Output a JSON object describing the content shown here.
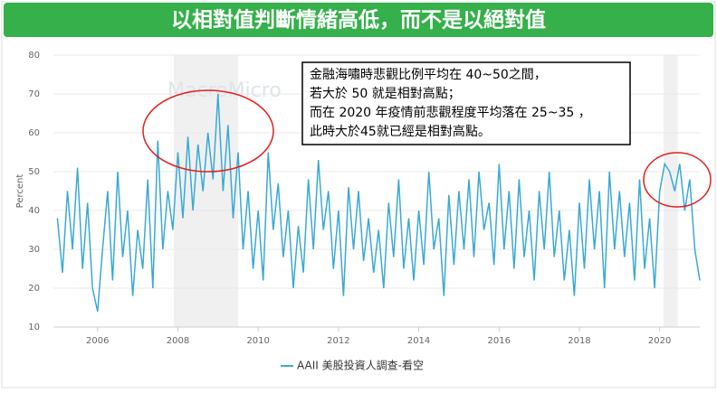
{
  "chart_data": {
    "type": "line",
    "title": "以相對值判斷情緒高低，而不是以絕對值",
    "watermark": "MacroMicro",
    "y_label": "Percent",
    "annotation": [
      "金融海嘯時悲觀比例平均在 40~50之間，",
      "若大於 50 就是相對高點；",
      "而在 2020 年疫情前悲觀程度平均落在 25~35 ，",
      "此時大於45就已經是相對高點。"
    ],
    "xlim": [
      2004.9,
      2021.0
    ],
    "xticks": [
      2006,
      2008,
      2010,
      2012,
      2014,
      2016,
      2018,
      2020
    ],
    "ylim": [
      10,
      80
    ],
    "yticks": [
      10,
      20,
      30,
      40,
      50,
      60,
      70,
      80
    ],
    "grid": true,
    "shaded": [
      [
        2007.9,
        2009.5
      ],
      [
        2020.1,
        2020.45
      ]
    ],
    "x": [
      2005,
      2005.125,
      2005.25,
      2005.375,
      2005.5,
      2005.625,
      2005.75,
      2005.875,
      2006,
      2006.125,
      2006.25,
      2006.375,
      2006.5,
      2006.625,
      2006.75,
      2006.875,
      2007,
      2007.125,
      2007.25,
      2007.375,
      2007.5,
      2007.625,
      2007.75,
      2007.875,
      2008,
      2008.125,
      2008.25,
      2008.375,
      2008.5,
      2008.625,
      2008.75,
      2008.875,
      2009,
      2009.125,
      2009.25,
      2009.375,
      2009.5,
      2009.625,
      2009.75,
      2009.875,
      2010,
      2010.125,
      2010.25,
      2010.375,
      2010.5,
      2010.625,
      2010.75,
      2010.875,
      2011,
      2011.125,
      2011.25,
      2011.375,
      2011.5,
      2011.625,
      2011.75,
      2011.875,
      2012,
      2012.125,
      2012.25,
      2012.375,
      2012.5,
      2012.625,
      2012.75,
      2012.875,
      2013,
      2013.125,
      2013.25,
      2013.375,
      2013.5,
      2013.625,
      2013.75,
      2013.875,
      2014,
      2014.125,
      2014.25,
      2014.375,
      2014.5,
      2014.625,
      2014.75,
      2014.875,
      2015,
      2015.125,
      2015.25,
      2015.375,
      2015.5,
      2015.625,
      2015.75,
      2015.875,
      2016,
      2016.125,
      2016.25,
      2016.375,
      2016.5,
      2016.625,
      2016.75,
      2016.875,
      2017,
      2017.125,
      2017.25,
      2017.375,
      2017.5,
      2017.625,
      2017.75,
      2017.875,
      2018,
      2018.125,
      2018.25,
      2018.375,
      2018.5,
      2018.625,
      2018.75,
      2018.875,
      2019,
      2019.125,
      2019.25,
      2019.375,
      2019.5,
      2019.625,
      2019.75,
      2019.875,
      2020,
      2020.125,
      2020.25,
      2020.375,
      2020.5,
      2020.625,
      2020.75,
      2020.875,
      2021
    ],
    "series": [
      {
        "name": "AAII 美股投資人調查-看空",
        "color": "#3aa9d6",
        "values": [
          38,
          24,
          45,
          30,
          51,
          25,
          42,
          20,
          14,
          30,
          45,
          22,
          50,
          28,
          40,
          18,
          35,
          25,
          48,
          20,
          58,
          30,
          45,
          35,
          55,
          38,
          59,
          40,
          57,
          45,
          60,
          48,
          70,
          45,
          62,
          38,
          55,
          30,
          45,
          25,
          40,
          22,
          55,
          35,
          47,
          28,
          40,
          20,
          36,
          24,
          48,
          30,
          53,
          35,
          45,
          25,
          40,
          18,
          46,
          30,
          45,
          27,
          38,
          24,
          35,
          20,
          42,
          28,
          48,
          25,
          38,
          22,
          40,
          26,
          50,
          30,
          38,
          18,
          44,
          26,
          45,
          30,
          48,
          28,
          50,
          35,
          42,
          26,
          52,
          30,
          45,
          25,
          48,
          28,
          40,
          22,
          45,
          30,
          50,
          28,
          40,
          22,
          35,
          18,
          42,
          25,
          48,
          30,
          45,
          20,
          50,
          30,
          45,
          28,
          42,
          22,
          48,
          25,
          38,
          20,
          45,
          52,
          50,
          45,
          52,
          40,
          48,
          30,
          22
        ]
      }
    ]
  }
}
